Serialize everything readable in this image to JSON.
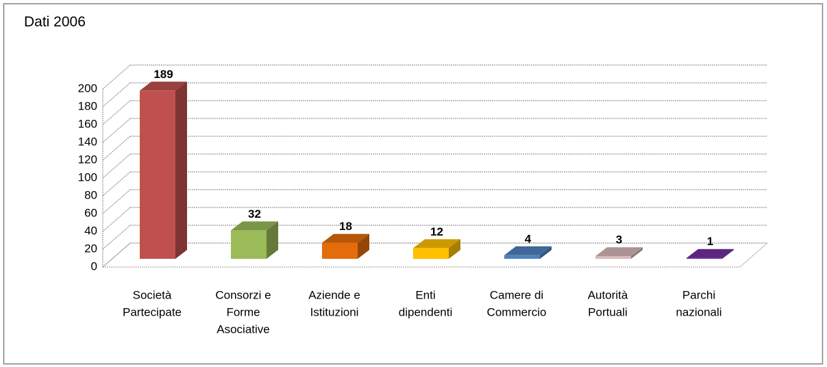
{
  "chart_data": {
    "type": "bar3d",
    "title": "Dati 2006",
    "categories": [
      [
        "Società",
        "Partecipate"
      ],
      [
        "Consorzi e",
        "Forme",
        "Asociative"
      ],
      [
        "Aziende e",
        "Istituzioni"
      ],
      [
        "Enti",
        "dipendenti"
      ],
      [
        "Camere di",
        "Commercio"
      ],
      [
        "Autorità",
        "Portuali"
      ],
      [
        "Parchi",
        "nazionali"
      ]
    ],
    "values": [
      189,
      32,
      18,
      12,
      4,
      3,
      1
    ],
    "colors": [
      "#c0504d",
      "#9bbb59",
      "#e46c0a",
      "#ffc000",
      "#4f81bd",
      "#d8b9b9",
      "#7030a0"
    ],
    "ylim": [
      0,
      200
    ],
    "yticks": [
      0,
      20,
      40,
      60,
      80,
      100,
      120,
      140,
      160,
      180,
      200
    ],
    "grid": true
  }
}
